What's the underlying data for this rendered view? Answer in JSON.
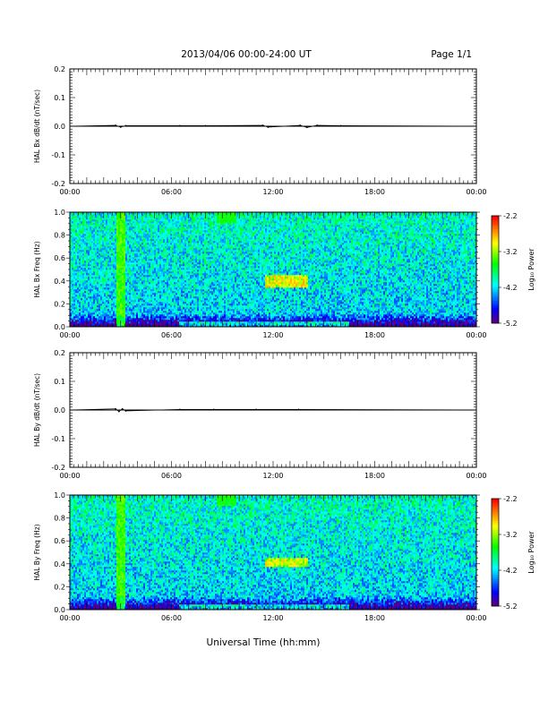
{
  "header": {
    "title": "2013/04/06  00:00-24:00 UT",
    "page": "Page 1/1"
  },
  "xaxis": {
    "title": "Universal Time (hh:mm)",
    "ticks": [
      "00:00",
      "06:00",
      "12:00",
      "18:00",
      "00:00"
    ],
    "range_hours": [
      0,
      24
    ]
  },
  "chart_data": [
    {
      "type": "line",
      "ylabel": "HAL Bx dB/dt (nT/sec)",
      "ylim": [
        -0.2,
        0.2
      ],
      "yticks": [
        "0.2",
        "0.1",
        "0.0",
        "-0.1",
        "-0.2"
      ],
      "x_hours": [
        0,
        2.7,
        3.0,
        3.3,
        6.5,
        8.0,
        11.4,
        11.7,
        13.6,
        14.0,
        14.6,
        16.0,
        24
      ],
      "values": [
        0,
        0.003,
        -0.003,
        0.002,
        0.002,
        0.002,
        0.003,
        -0.003,
        0.003,
        -0.004,
        0.003,
        0.002,
        0
      ]
    },
    {
      "type": "heatmap",
      "ylabel": "HAL Bx Freq (Hz)",
      "ylim": [
        0.0,
        1.0
      ],
      "yticks": [
        "1.0",
        "0.8",
        "0.6",
        "0.4",
        "0.2",
        "0.0"
      ],
      "colorbar": {
        "label": "Log₁₀ Power",
        "range": [
          -5.2,
          -2.2
        ],
        "ticks": [
          "-2.2",
          "-3.2",
          "-4.2",
          "-5.2"
        ]
      },
      "features": [
        {
          "name": "broadband burst",
          "start_hour": 2.7,
          "end_hour": 3.3,
          "freq_range_hz": [
            0.0,
            1.0
          ],
          "log_power": -3.2
        },
        {
          "name": "narrowband emission",
          "start_hour": 11.5,
          "end_hour": 14.1,
          "freq_range_hz": [
            0.35,
            0.45
          ],
          "log_power": -2.6
        },
        {
          "name": "high-frequency patch",
          "start_hour": 8.7,
          "end_hour": 9.8,
          "freq_range_hz": [
            0.9,
            1.0
          ],
          "log_power": -3.4
        }
      ]
    },
    {
      "type": "line",
      "ylabel": "HAL By dB/dt (nT/sec)",
      "ylim": [
        -0.2,
        0.2
      ],
      "yticks": [
        "0.2",
        "0.1",
        "0.0",
        "-0.1",
        "-0.2"
      ],
      "x_hours": [
        0,
        2.7,
        2.9,
        3.1,
        3.3,
        6.5,
        8.5,
        11.0,
        13.5,
        24
      ],
      "values": [
        0,
        0.004,
        -0.005,
        0.004,
        -0.003,
        0.002,
        0.002,
        0.002,
        0.002,
        0
      ]
    },
    {
      "type": "heatmap",
      "ylabel": "HAL By Freq (Hz)",
      "ylim": [
        0.0,
        1.0
      ],
      "yticks": [
        "1.0",
        "0.8",
        "0.6",
        "0.4",
        "0.2",
        "0.0"
      ],
      "colorbar": {
        "label": "Log₁₀ Power",
        "range": [
          -5.2,
          -2.2
        ],
        "ticks": [
          "-2.2",
          "-3.2",
          "-4.2",
          "-5.2"
        ]
      },
      "features": [
        {
          "name": "broadband burst",
          "start_hour": 2.7,
          "end_hour": 3.3,
          "freq_range_hz": [
            0.0,
            1.0
          ],
          "log_power": -3.2
        },
        {
          "name": "narrowband emission",
          "start_hour": 11.5,
          "end_hour": 14.1,
          "freq_range_hz": [
            0.38,
            0.46
          ],
          "log_power": -2.7
        },
        {
          "name": "high-frequency patch",
          "start_hour": 8.7,
          "end_hour": 9.8,
          "freq_range_hz": [
            0.9,
            1.0
          ],
          "log_power": -3.4
        }
      ]
    }
  ]
}
